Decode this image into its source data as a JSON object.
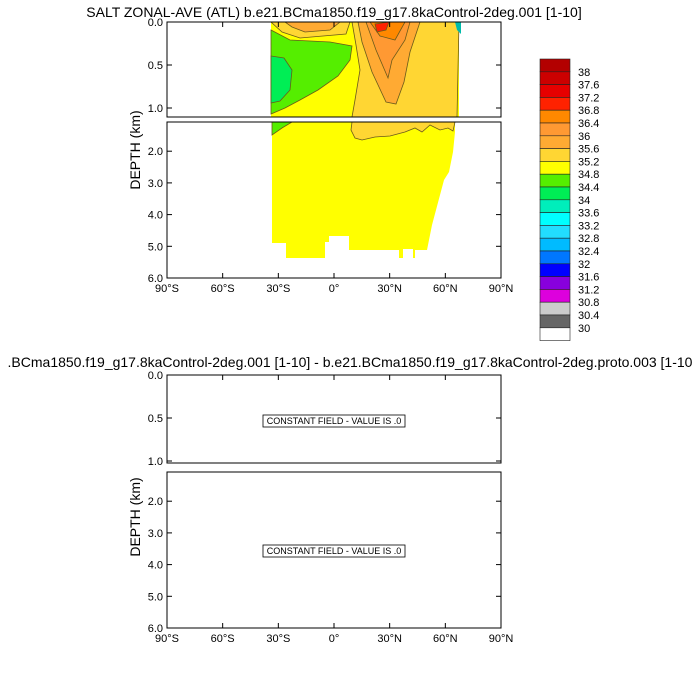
{
  "chart_data": [
    {
      "type": "contour",
      "title": "SALT ZONAL-AVE (ATL) b.e21.BCma1850.f19_g17.8kaControl-2deg.001 [1-10]",
      "ylabel": "DEPTH (km)",
      "x_ticks": [
        "90°S",
        "60°S",
        "30°S",
        "0°",
        "30°N",
        "60°N",
        "90°N"
      ],
      "xlim": [
        -90,
        90
      ],
      "ylim": [
        6.0,
        0.0
      ],
      "upper_panel_ticks": [
        "0.0",
        "0.5",
        "1.0"
      ],
      "lower_panel_ticks": [
        "2.0",
        "3.0",
        "4.0",
        "5.0",
        "6.0"
      ],
      "colorbar": {
        "labels": [
          "38",
          "37.6",
          "37.2",
          "36.8",
          "36.4",
          "36",
          "35.6",
          "35.2",
          "34.8",
          "34.4",
          "34",
          "33.6",
          "33.2",
          "32.8",
          "32.4",
          "32",
          "31.6",
          "31.2",
          "30.8",
          "30.4",
          "30"
        ],
        "colors": [
          "#b30000",
          "#cc0000",
          "#e60000",
          "#ff2200",
          "#ff8800",
          "#ff9933",
          "#ffaa33",
          "#ffd633",
          "#ffff00",
          "#55ee00",
          "#00ee55",
          "#00eebb",
          "#00ffff",
          "#22ddff",
          "#00bbff",
          "#0077ff",
          "#0000ff",
          "#8800dd",
          "#dd00dd",
          "#cccccc",
          "#666666",
          "#ffffff"
        ],
        "placement": "right"
      }
    },
    {
      "type": "contour",
      "title": ".BCma1850.f19_g17.8kaControl-2deg.001 [1-10] - b.e21.BCma1850.f19_g17.8kaControl-2deg.proto.003 [1-10",
      "ylabel": "DEPTH (km)",
      "x_ticks": [
        "90°S",
        "60°S",
        "30°S",
        "0°",
        "30°N",
        "60°N",
        "90°N"
      ],
      "xlim": [
        -90,
        90
      ],
      "ylim": [
        6.0,
        0.0
      ],
      "upper_panel_ticks": [
        "0.0",
        "0.5",
        "1.0"
      ],
      "lower_panel_ticks": [
        "2.0",
        "3.0",
        "4.0",
        "5.0",
        "6.0"
      ],
      "annotation": "CONSTANT FIELD - VALUE IS .0"
    }
  ]
}
